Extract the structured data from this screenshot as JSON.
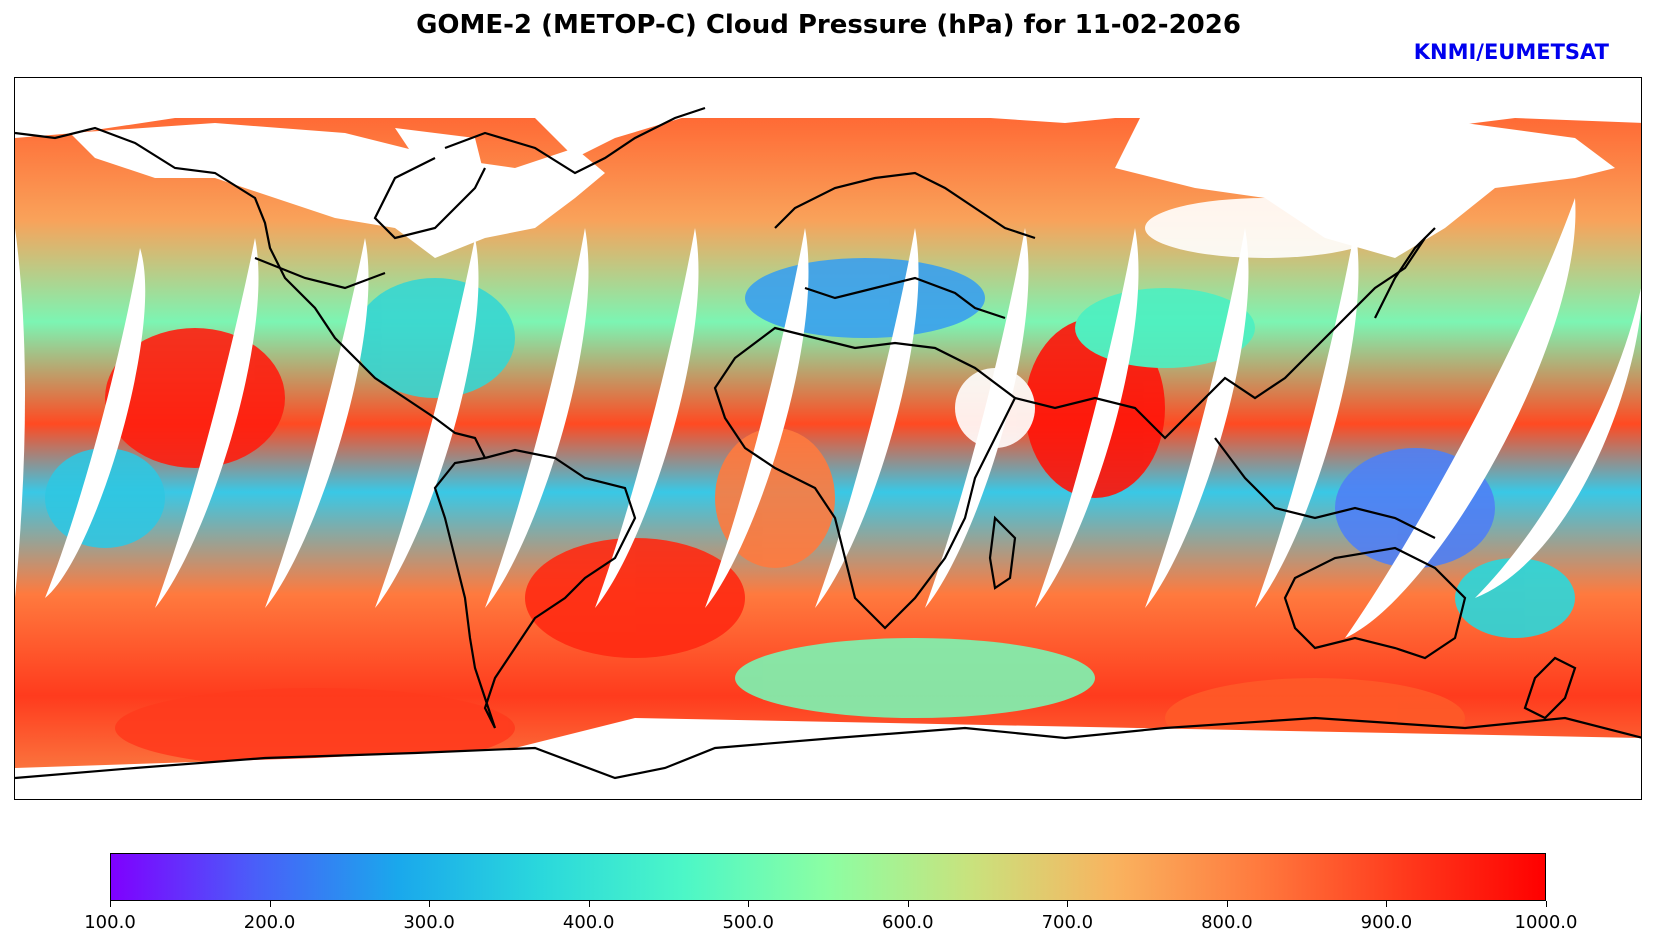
{
  "title": "GOME-2 (METOP-C) Cloud Pressure (hPa) for 11-02-2026",
  "credit": "KNMI/EUMETSAT",
  "colors": {
    "credit": "#0000ee",
    "coastline": "#000000",
    "swath_gap": "#ffffff",
    "colormap": [
      "#7f00ff",
      "#4a5ef9",
      "#1aa8ec",
      "#2ad8dc",
      "#4cf7c7",
      "#8cfea3",
      "#c9e27d",
      "#f9b35f",
      "#ff7a3e",
      "#ff3b1d",
      "#ff0000"
    ]
  },
  "colorbar": {
    "min": 100.0,
    "max": 1000.0,
    "ticks": [
      "100.0",
      "200.0",
      "300.0",
      "400.0",
      "500.0",
      "600.0",
      "700.0",
      "800.0",
      "900.0",
      "1000.0"
    ]
  },
  "swath_gaps": {
    "count": 15,
    "note_icon": "satellite-swath-gap"
  }
}
